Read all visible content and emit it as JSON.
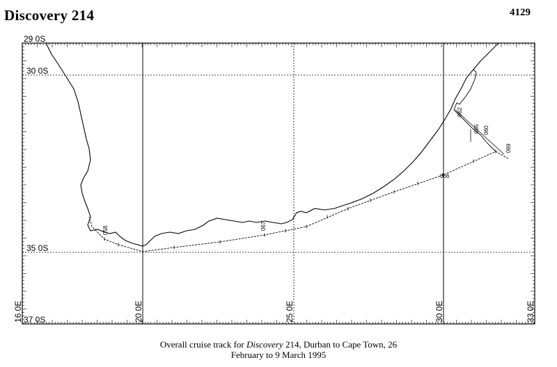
{
  "header": {
    "cruise_title": "Discovery 214",
    "page_number": "4129"
  },
  "map": {
    "lat_labels": [
      "29 0S",
      "30 0S",
      "35 0S",
      "37 0S"
    ],
    "lon_labels": [
      "16 0E",
      "20 0E",
      "25 0E",
      "30 0E",
      "33 0E"
    ],
    "station_labels": [
      "058",
      "067",
      "066",
      "069",
      "065",
      "060",
      "062"
    ],
    "line_color": "#000000"
  },
  "caption": {
    "prefix": "Overall cruise track for ",
    "vessel": "Discovery",
    "suffix": " 214, Durban to Cape Town, 26",
    "line2": "February to 9 March 1995"
  }
}
